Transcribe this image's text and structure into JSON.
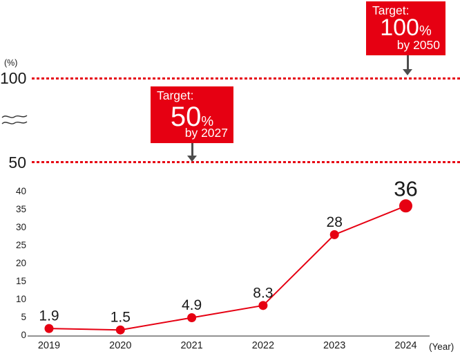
{
  "chart_data": {
    "type": "line",
    "title": "",
    "x": [
      "2019",
      "2020",
      "2021",
      "2022",
      "2023",
      "2024"
    ],
    "values": [
      1.9,
      1.5,
      4.9,
      8.3,
      28,
      36
    ],
    "point_labels": [
      "1.9",
      "1.5",
      "4.9",
      "8.3",
      "28",
      "36"
    ],
    "xlabel": "(Year)",
    "ylabel": "(%)",
    "lower_ticks": [
      40,
      35,
      30,
      25,
      20,
      15,
      10,
      5,
      0
    ],
    "upper_ticks": [
      100,
      50
    ],
    "axis_break": true,
    "grid": false,
    "legend": false,
    "line_color": "#e60012",
    "marker_color": "#e60012",
    "emphasize_last": true,
    "reference_lines": [
      {
        "value": 100,
        "style": "dotted",
        "color": "#e60012"
      },
      {
        "value": 50,
        "style": "dotted",
        "color": "#e60012"
      }
    ],
    "annotations": [
      {
        "title": "Target:",
        "value": "50",
        "unit": "%",
        "deadline": "by 2027",
        "points_to": 50
      },
      {
        "title": "Target:",
        "value": "100",
        "unit": "%",
        "deadline": "by 2050",
        "points_to": 100
      }
    ]
  },
  "colors": {
    "accent_red": "#e60012",
    "arrow_gray": "#4d4d4d",
    "axis_gray": "#919191",
    "text_dark": "#1a1a1a",
    "target_text": "#ffffff"
  }
}
